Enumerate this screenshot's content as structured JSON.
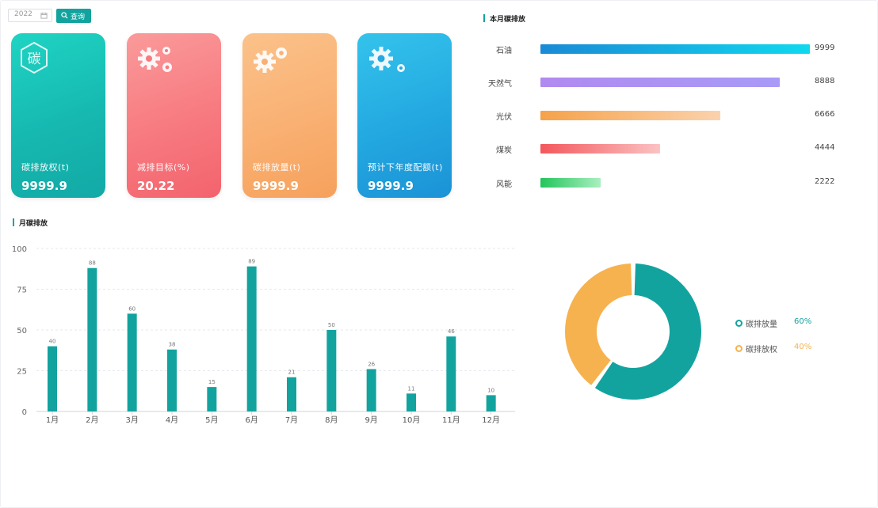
{
  "toolbar": {
    "year": "2022",
    "query_label": "查询"
  },
  "cards": [
    {
      "label": "碳排放权(t)",
      "value": "9999.9",
      "icon_text": "碳"
    },
    {
      "label": "减排目标(%)",
      "value": "20.22"
    },
    {
      "label": "碳排放量(t)",
      "value": "9999.9"
    },
    {
      "label": "预计下年度配额(t)",
      "value": "9999.9"
    }
  ],
  "energy_ranking": {
    "title": "本月碳排放",
    "items": [
      {
        "label": "石油",
        "value": 9999,
        "colors": [
          "#1a8ad6",
          "#10d8ee"
        ]
      },
      {
        "label": "天然气",
        "value": 8888,
        "colors": [
          "#b08af0",
          "#a89af6"
        ]
      },
      {
        "label": "光伏",
        "value": 6666,
        "colors": [
          "#f6a24a",
          "#fbd2ad"
        ]
      },
      {
        "label": "煤炭",
        "value": 4444,
        "colors": [
          "#f3575c",
          "#fbc3c3"
        ]
      },
      {
        "label": "风能",
        "value": 2222,
        "colors": [
          "#22c55a",
          "#aaefc0"
        ]
      }
    ],
    "max": 10000
  },
  "monthly_chart": {
    "title": "月碳排放",
    "chart_data": {
      "type": "bar",
      "categories": [
        "1月",
        "2月",
        "3月",
        "4月",
        "5月",
        "6月",
        "7月",
        "8月",
        "9月",
        "10月",
        "11月",
        "12月"
      ],
      "values": [
        40,
        88,
        60,
        38,
        15,
        89,
        21,
        50,
        26,
        11,
        46,
        10
      ],
      "ylim": [
        0,
        100
      ],
      "yticks": [
        0,
        25,
        50,
        75,
        100
      ],
      "bar_color": "#13a39f"
    }
  },
  "donut": {
    "chart_data": {
      "type": "pie",
      "slices": [
        {
          "label": "碳排放量",
          "pct_text": "60%",
          "value": 60,
          "color": "#13a39f"
        },
        {
          "label": "碳排放权",
          "pct_text": "40%",
          "value": 40,
          "color": "#f6b24f"
        }
      ]
    }
  }
}
